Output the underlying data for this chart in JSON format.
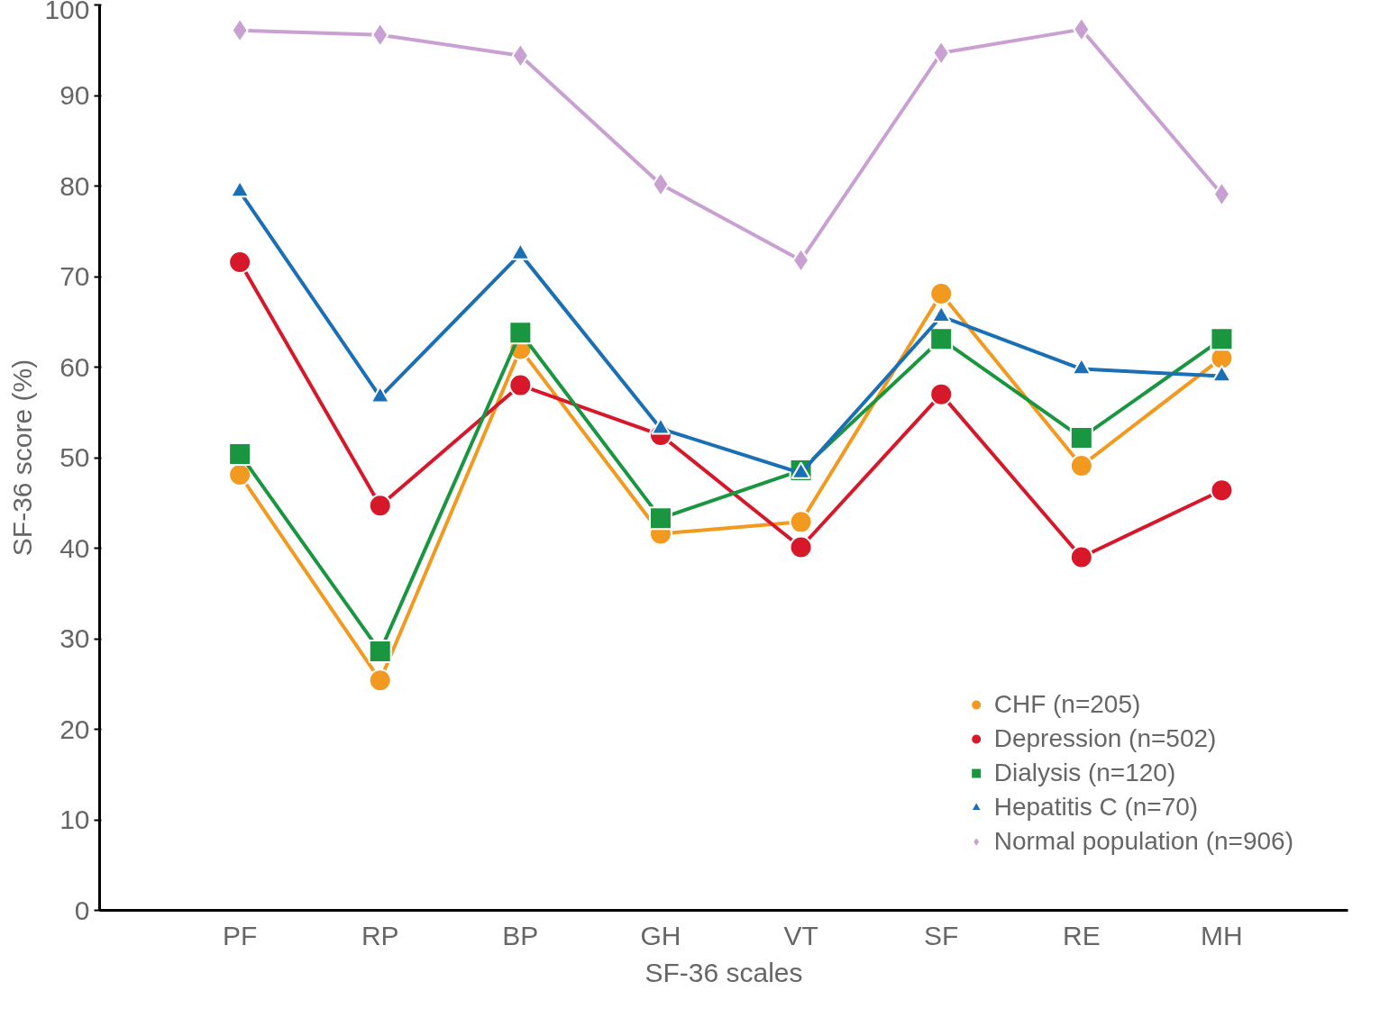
{
  "chart_data": {
    "type": "line",
    "xlabel": "SF-36 scales",
    "ylabel": "SF-36 score (%)",
    "categories": [
      "PF",
      "RP",
      "BP",
      "GH",
      "VT",
      "SF",
      "RE",
      "MH"
    ],
    "ylim": [
      0,
      100
    ],
    "yticks": [
      0,
      10,
      20,
      30,
      40,
      50,
      60,
      70,
      80,
      90,
      100
    ],
    "grid": false,
    "legend": "bottom right",
    "line_style": "solid",
    "series": [
      {
        "name": "CHF (n=205)",
        "color": "#f29a1f",
        "marker": "circle",
        "values": [
          48.1,
          25.4,
          62.0,
          41.6,
          42.9,
          68.1,
          49.1,
          61.0
        ]
      },
      {
        "name": "Depression (n=502)",
        "color": "#d7182a",
        "marker": "circle",
        "values": [
          71.6,
          44.7,
          58.0,
          52.5,
          40.1,
          57.0,
          39.0,
          46.4
        ]
      },
      {
        "name": "Dialysis (n=120)",
        "color": "#1a9641",
        "marker": "square",
        "values": [
          50.4,
          28.6,
          63.8,
          43.3,
          48.6,
          63.1,
          52.2,
          63.1
        ]
      },
      {
        "name": "Hepatitis C (n=70)",
        "color": "#1a6fb5",
        "marker": "triangle",
        "values": [
          79.4,
          56.7,
          72.5,
          53.2,
          48.3,
          65.6,
          59.8,
          59.0
        ]
      },
      {
        "name": "Normal population (n=906)",
        "color": "#c8a0d2",
        "marker": "diamond",
        "values": [
          97.2,
          96.7,
          94.4,
          80.2,
          71.8,
          94.7,
          97.3,
          79.1
        ]
      }
    ]
  }
}
